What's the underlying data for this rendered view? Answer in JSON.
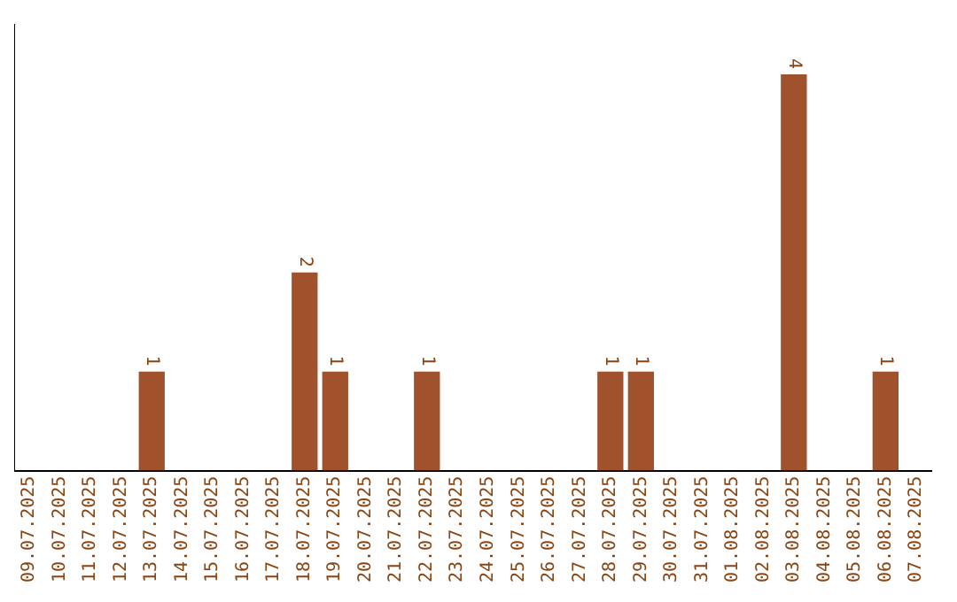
{
  "chart_data": {
    "type": "bar",
    "categories": [
      "09.07.2025",
      "10.07.2025",
      "11.07.2025",
      "12.07.2025",
      "13.07.2025",
      "14.07.2025",
      "15.07.2025",
      "16.07.2025",
      "17.07.2025",
      "18.07.2025",
      "19.07.2025",
      "20.07.2025",
      "21.07.2025",
      "22.07.2025",
      "23.07.2025",
      "24.07.2025",
      "25.07.2025",
      "26.07.2025",
      "27.07.2025",
      "28.07.2025",
      "29.07.2025",
      "30.07.2025",
      "31.07.2025",
      "01.08.2025",
      "02.08.2025",
      "03.08.2025",
      "04.08.2025",
      "05.08.2025",
      "06.08.2025",
      "07.08.2025"
    ],
    "values": [
      0,
      0,
      0,
      0,
      1,
      0,
      0,
      0,
      0,
      2,
      1,
      0,
      0,
      1,
      0,
      0,
      0,
      0,
      0,
      1,
      1,
      0,
      0,
      0,
      0,
      4,
      0,
      0,
      1,
      0
    ],
    "value_labels": [
      null,
      null,
      null,
      null,
      "1",
      null,
      null,
      null,
      null,
      "2",
      "1",
      null,
      null,
      "1",
      null,
      null,
      null,
      null,
      null,
      "1",
      "1",
      null,
      null,
      null,
      null,
      "4",
      null,
      null,
      "1",
      null
    ],
    "color": "#a0522d",
    "tick_labels": "x",
    "grid": false,
    "legend": false
  }
}
